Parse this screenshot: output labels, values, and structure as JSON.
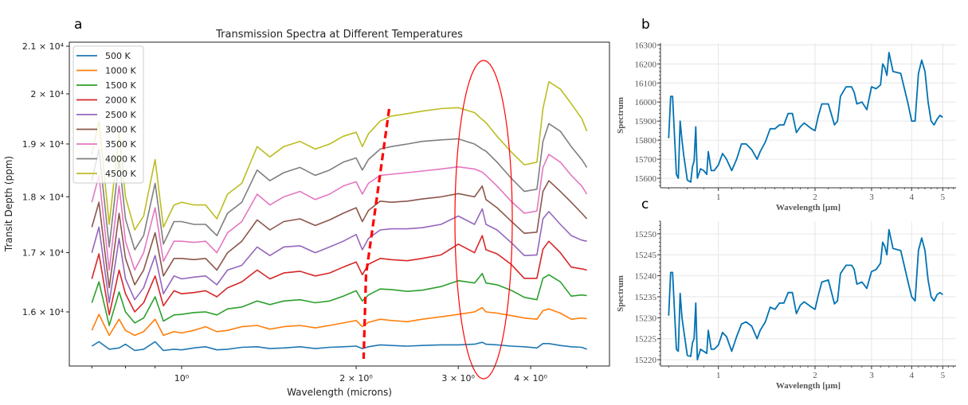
{
  "chart_data": [
    {
      "panel_label": "a",
      "type": "line",
      "title": "Transmission Spectra at Different Temperatures",
      "xlabel": "Wavelength (microns)",
      "ylabel": "Transit Depth (ppm)",
      "xscale": "log",
      "yscale": "log",
      "xlim": [
        0.58,
        5.4
      ],
      "ylim": [
        15350,
        21050
      ],
      "xticks": [
        {
          "value": 1,
          "label": "10⁰"
        },
        {
          "value": 2,
          "label": "2 × 10⁰"
        },
        {
          "value": 3,
          "label": "3 × 10⁰"
        },
        {
          "value": 4,
          "label": "4 × 10⁰"
        }
      ],
      "yticks": [
        {
          "value": 16000,
          "label": "1.6 × 10⁴"
        },
        {
          "value": 17000,
          "label": "1.7 × 10⁴"
        },
        {
          "value": 18000,
          "label": "1.8 × 10⁴"
        },
        {
          "value": 19000,
          "label": "1.9 × 10⁴"
        },
        {
          "value": 20000,
          "label": "2 × 10⁴"
        },
        {
          "value": 21000,
          "label": "2.1 × 10⁴"
        }
      ],
      "legend_position": "top-left",
      "x": [
        0.7,
        0.72,
        0.75,
        0.78,
        0.8,
        0.83,
        0.86,
        0.9,
        0.93,
        0.97,
        1.0,
        1.05,
        1.1,
        1.15,
        1.2,
        1.27,
        1.35,
        1.42,
        1.5,
        1.6,
        1.7,
        1.8,
        1.9,
        2.0,
        2.05,
        2.1,
        2.2,
        2.3,
        2.45,
        2.6,
        2.8,
        3.0,
        3.2,
        3.3,
        3.35,
        3.5,
        3.7,
        3.9,
        4.1,
        4.2,
        4.3,
        4.5,
        4.7,
        4.9,
        5.0
      ],
      "series": [
        {
          "name": "500 K",
          "color": "#1f77b4",
          "values": [
            15450,
            15520,
            15400,
            15420,
            15480,
            15380,
            15400,
            15520,
            15380,
            15400,
            15390,
            15420,
            15440,
            15390,
            15400,
            15430,
            15440,
            15410,
            15420,
            15440,
            15410,
            15430,
            15440,
            15450,
            15410,
            15440,
            15470,
            15460,
            15450,
            15460,
            15470,
            15470,
            15480,
            15510,
            15480,
            15470,
            15450,
            15440,
            15420,
            15490,
            15490,
            15460,
            15440,
            15430,
            15400
          ]
        },
        {
          "name": "1000 K",
          "color": "#ff7f0e",
          "values": [
            15700,
            15960,
            15620,
            15880,
            15700,
            15620,
            15680,
            15880,
            15620,
            15680,
            15660,
            15700,
            15760,
            15680,
            15700,
            15760,
            15780,
            15720,
            15760,
            15780,
            15740,
            15780,
            15820,
            15860,
            15760,
            15830,
            15880,
            15860,
            15840,
            15880,
            15920,
            15960,
            16000,
            16070,
            16000,
            15980,
            15940,
            15900,
            15880,
            16020,
            16050,
            15980,
            15880,
            15900,
            15890
          ]
        },
        {
          "name": "1500 K",
          "color": "#2ca02c",
          "values": [
            16150,
            16500,
            15780,
            16330,
            16000,
            15820,
            15900,
            16250,
            15850,
            15950,
            15960,
            15990,
            16000,
            15950,
            16050,
            16080,
            16180,
            16120,
            16180,
            16200,
            16150,
            16180,
            16260,
            16350,
            16180,
            16280,
            16380,
            16370,
            16340,
            16360,
            16420,
            16520,
            16480,
            16640,
            16480,
            16450,
            16360,
            16240,
            16200,
            16560,
            16620,
            16500,
            16260,
            16280,
            16270
          ]
        },
        {
          "name": "2000 K",
          "color": "#d62728",
          "values": [
            16550,
            16980,
            15950,
            16700,
            16300,
            16000,
            16150,
            16600,
            16100,
            16350,
            16300,
            16320,
            16350,
            16250,
            16400,
            16500,
            16700,
            16550,
            16650,
            16680,
            16600,
            16650,
            16750,
            16840,
            16620,
            16800,
            16900,
            16880,
            16860,
            16900,
            16960,
            17150,
            17000,
            17300,
            17050,
            16980,
            16800,
            16560,
            16560,
            17060,
            17200,
            17000,
            16750,
            16720,
            16700
          ]
        },
        {
          "name": "2500 K",
          "color": "#9467bd",
          "values": [
            17000,
            17450,
            16150,
            17250,
            16550,
            16200,
            16400,
            16950,
            16300,
            16600,
            16550,
            16580,
            16600,
            16450,
            16700,
            16780,
            17100,
            16950,
            17100,
            17120,
            17000,
            17100,
            17200,
            17320,
            17050,
            17250,
            17400,
            17420,
            17420,
            17440,
            17500,
            17650,
            17500,
            17780,
            17500,
            17400,
            17180,
            16950,
            16960,
            17600,
            17730,
            17500,
            17300,
            17220,
            17200
          ]
        },
        {
          "name": "3000 K",
          "color": "#8c564b",
          "values": [
            17450,
            17900,
            16400,
            17700,
            16900,
            16450,
            16700,
            17350,
            16600,
            16900,
            16900,
            16880,
            16900,
            16700,
            17000,
            17200,
            17580,
            17400,
            17550,
            17600,
            17480,
            17580,
            17700,
            17800,
            17550,
            17750,
            17920,
            17900,
            17920,
            17960,
            18000,
            18060,
            18000,
            18200,
            17950,
            17800,
            17560,
            17340,
            17360,
            18100,
            18300,
            18100,
            17900,
            17700,
            17600
          ]
        },
        {
          "name": "3500 K",
          "color": "#e377c2",
          "values": [
            17900,
            18400,
            16700,
            18200,
            17200,
            16700,
            17000,
            17800,
            16850,
            17200,
            17200,
            17180,
            17200,
            17000,
            17350,
            17550,
            18050,
            17850,
            18000,
            18100,
            17950,
            18050,
            18200,
            18280,
            18050,
            18250,
            18400,
            18420,
            18450,
            18480,
            18520,
            18560,
            18520,
            18460,
            18400,
            18200,
            17920,
            17700,
            17740,
            18550,
            18800,
            18650,
            18400,
            18200,
            18050
          ]
        },
        {
          "name": "4000 K",
          "color": "#7f7f7f",
          "values": [
            18300,
            18900,
            17100,
            18700,
            17600,
            17050,
            17300,
            18250,
            17150,
            17550,
            17550,
            17500,
            17500,
            17300,
            17700,
            17900,
            18500,
            18300,
            18450,
            18550,
            18400,
            18500,
            18650,
            18730,
            18500,
            18700,
            18900,
            18950,
            19000,
            19050,
            19080,
            19100,
            19000,
            18900,
            18860,
            18650,
            18350,
            18100,
            18140,
            19050,
            19400,
            19250,
            18950,
            18700,
            18550
          ]
        },
        {
          "name": "4500 K",
          "color": "#bcbd22",
          "values": [
            18800,
            19450,
            17500,
            19200,
            18000,
            17400,
            17650,
            18700,
            17450,
            17850,
            17900,
            17850,
            17850,
            17600,
            18050,
            18250,
            18950,
            18750,
            18950,
            19050,
            18900,
            19000,
            19150,
            19230,
            18950,
            19200,
            19450,
            19550,
            19600,
            19650,
            19700,
            19720,
            19620,
            19480,
            19420,
            19150,
            18850,
            18600,
            18650,
            19700,
            20250,
            20100,
            19800,
            19500,
            19250
          ]
        }
      ],
      "annotations": [
        {
          "type": "dashed-line",
          "color": "#ff0000",
          "description": "red dashed curve marking shift of a feature near 2.1–2.3 microns"
        },
        {
          "type": "ellipse",
          "color": "#ff0000",
          "description": "red ellipse around feature at ~3.3 microns"
        }
      ]
    },
    {
      "panel_label": "b",
      "type": "line",
      "xlabel": "Wavelength [µm]",
      "ylabel": "Spectrum",
      "xscale": "log",
      "xlim": [
        0.66,
        5.5
      ],
      "ylim": [
        15550,
        16310
      ],
      "grid": true,
      "xticks": [
        {
          "value": 1,
          "label": "1"
        },
        {
          "value": 2,
          "label": "2"
        },
        {
          "value": 3,
          "label": "3"
        },
        {
          "value": 4,
          "label": "4"
        },
        {
          "value": 5,
          "label": "5"
        }
      ],
      "yticks": [
        {
          "value": 15600,
          "label": "15600"
        },
        {
          "value": 15700,
          "label": "15700"
        },
        {
          "value": 15800,
          "label": "15800"
        },
        {
          "value": 15900,
          "label": "15900"
        },
        {
          "value": 16000,
          "label": "16000"
        },
        {
          "value": 16100,
          "label": "16100"
        },
        {
          "value": 16200,
          "label": "16200"
        },
        {
          "value": 16300,
          "label": "16300"
        }
      ],
      "color": "#0072b2",
      "x": [
        0.7,
        0.71,
        0.72,
        0.74,
        0.75,
        0.76,
        0.77,
        0.78,
        0.8,
        0.82,
        0.83,
        0.84,
        0.85,
        0.86,
        0.88,
        0.9,
        0.92,
        0.93,
        0.95,
        0.97,
        1.0,
        1.03,
        1.06,
        1.1,
        1.14,
        1.18,
        1.22,
        1.27,
        1.32,
        1.35,
        1.4,
        1.45,
        1.5,
        1.55,
        1.6,
        1.65,
        1.7,
        1.75,
        1.8,
        1.85,
        1.95,
        2.0,
        2.05,
        2.1,
        2.2,
        2.3,
        2.35,
        2.4,
        2.5,
        2.6,
        2.65,
        2.7,
        2.8,
        2.9,
        3.0,
        3.1,
        3.2,
        3.25,
        3.3,
        3.35,
        3.4,
        3.5,
        3.7,
        3.9,
        4.0,
        4.1,
        4.2,
        4.3,
        4.4,
        4.5,
        4.6,
        4.7,
        4.8,
        4.9,
        5.0
      ],
      "values": [
        15810,
        16030,
        16030,
        15620,
        15600,
        15900,
        15800,
        15720,
        15590,
        15580,
        15660,
        15690,
        15870,
        15600,
        15650,
        15640,
        15620,
        15740,
        15640,
        15640,
        15670,
        15730,
        15700,
        15640,
        15700,
        15780,
        15780,
        15750,
        15700,
        15740,
        15790,
        15860,
        15860,
        15880,
        15880,
        15940,
        15940,
        15840,
        15870,
        15890,
        15860,
        15850,
        15930,
        15990,
        15990,
        15880,
        15900,
        16030,
        16080,
        16080,
        16050,
        15990,
        16000,
        15960,
        16080,
        16070,
        16090,
        16200,
        16180,
        16140,
        16260,
        16160,
        16150,
        15990,
        15900,
        15900,
        16150,
        16220,
        16160,
        16000,
        15900,
        15880,
        15910,
        15930,
        15920
      ]
    },
    {
      "panel_label": "c",
      "type": "line",
      "xlabel": "Wavelength [µm]",
      "ylabel": "Spectrum",
      "xscale": "log",
      "xlim": [
        0.66,
        5.5
      ],
      "ylim": [
        15218.5,
        15253
      ],
      "grid": true,
      "xticks": [
        {
          "value": 1,
          "label": "1"
        },
        {
          "value": 2,
          "label": "2"
        },
        {
          "value": 3,
          "label": "3"
        },
        {
          "value": 4,
          "label": "4"
        },
        {
          "value": 5,
          "label": "5"
        }
      ],
      "yticks": [
        {
          "value": 15220,
          "label": "15220"
        },
        {
          "value": 15225,
          "label": "15225"
        },
        {
          "value": 15230,
          "label": "15230"
        },
        {
          "value": 15235,
          "label": "15235"
        },
        {
          "value": 15240,
          "label": "15240"
        },
        {
          "value": 15245,
          "label": "15245"
        },
        {
          "value": 15250,
          "label": "15250"
        }
      ],
      "color": "#0072b2",
      "x": [
        0.7,
        0.71,
        0.72,
        0.74,
        0.75,
        0.76,
        0.77,
        0.78,
        0.8,
        0.82,
        0.83,
        0.84,
        0.85,
        0.86,
        0.88,
        0.9,
        0.92,
        0.93,
        0.95,
        0.97,
        1.0,
        1.03,
        1.06,
        1.1,
        1.14,
        1.18,
        1.22,
        1.27,
        1.32,
        1.35,
        1.4,
        1.45,
        1.5,
        1.55,
        1.6,
        1.65,
        1.7,
        1.75,
        1.8,
        1.85,
        1.95,
        2.0,
        2.05,
        2.1,
        2.2,
        2.3,
        2.35,
        2.4,
        2.5,
        2.6,
        2.65,
        2.7,
        2.8,
        2.9,
        3.0,
        3.1,
        3.2,
        3.25,
        3.3,
        3.35,
        3.4,
        3.5,
        3.7,
        3.9,
        4.0,
        4.1,
        4.2,
        4.3,
        4.4,
        4.5,
        4.6,
        4.7,
        4.8,
        4.9,
        5.0
      ],
      "values": [
        15230.5,
        15240.8,
        15240.8,
        15222.5,
        15222,
        15235.8,
        15230,
        15227,
        15221,
        15220.8,
        15224,
        15225,
        15233.5,
        15220,
        15222.5,
        15222,
        15221.5,
        15227,
        15222.5,
        15222.5,
        15223.5,
        15226.5,
        15225.5,
        15222,
        15225.5,
        15228.5,
        15229,
        15228,
        15225,
        15227,
        15229,
        15232.5,
        15232,
        15233.5,
        15233.5,
        15236,
        15236,
        15231,
        15233,
        15233.8,
        15232.5,
        15232,
        15235.5,
        15238.5,
        15239,
        15233.3,
        15234,
        15240.5,
        15242.5,
        15242.5,
        15241.5,
        15238,
        15238.5,
        15237,
        15241,
        15241.5,
        15243,
        15248,
        15247,
        15245,
        15251,
        15246.5,
        15246,
        15238.5,
        15235,
        15234,
        15246,
        15249,
        15246,
        15239,
        15235,
        15234,
        15235.5,
        15236,
        15235.5
      ]
    }
  ]
}
